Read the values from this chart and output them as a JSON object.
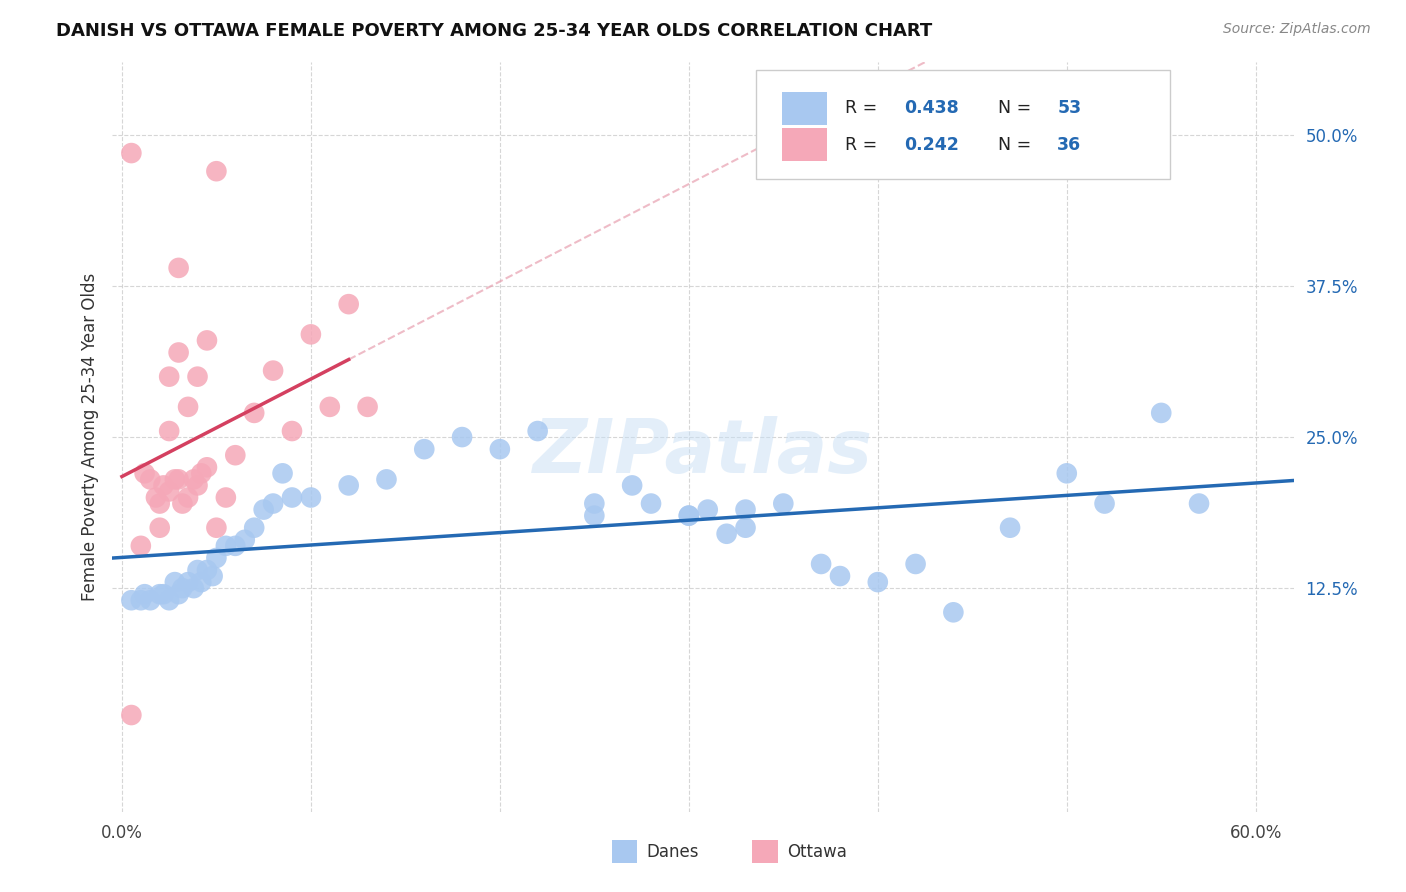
{
  "title": "DANISH VS OTTAWA FEMALE POVERTY AMONG 25-34 YEAR OLDS CORRELATION CHART",
  "source": "Source: ZipAtlas.com",
  "ylabel": "Female Poverty Among 25-34 Year Olds",
  "xlim": [
    -0.005,
    0.62
  ],
  "ylim": [
    -0.06,
    0.56
  ],
  "xticks": [
    0.0,
    0.1,
    0.2,
    0.3,
    0.4,
    0.5,
    0.6
  ],
  "xticklabels": [
    "0.0%",
    "",
    "",
    "",
    "",
    "",
    "60.0%"
  ],
  "yticks": [
    0.125,
    0.25,
    0.375,
    0.5
  ],
  "yticklabels": [
    "12.5%",
    "25.0%",
    "37.5%",
    "50.0%"
  ],
  "danes_color": "#a8c8f0",
  "ottawa_color": "#f5a8b8",
  "danes_line_color": "#2469b3",
  "ottawa_line_color": "#d44060",
  "ottawa_dash_color": "#e8a0b0",
  "r_val_color": "#2469b3",
  "background_color": "#ffffff",
  "grid_color": "#cccccc",
  "watermark": "ZIPatlas",
  "watermark_color": "#c8dff5",
  "danes_x": [
    0.005,
    0.01,
    0.012,
    0.015,
    0.02,
    0.022,
    0.025,
    0.028,
    0.03,
    0.032,
    0.035,
    0.038,
    0.04,
    0.042,
    0.045,
    0.048,
    0.05,
    0.055,
    0.06,
    0.065,
    0.07,
    0.075,
    0.08,
    0.085,
    0.09,
    0.1,
    0.12,
    0.14,
    0.16,
    0.18,
    0.2,
    0.22,
    0.25,
    0.27,
    0.28,
    0.3,
    0.31,
    0.32,
    0.33,
    0.35,
    0.37,
    0.38,
    0.4,
    0.42,
    0.44,
    0.47,
    0.5,
    0.52,
    0.55,
    0.57,
    0.33,
    0.25,
    0.3
  ],
  "danes_y": [
    0.115,
    0.115,
    0.12,
    0.115,
    0.12,
    0.12,
    0.115,
    0.13,
    0.12,
    0.125,
    0.13,
    0.125,
    0.14,
    0.13,
    0.14,
    0.135,
    0.15,
    0.16,
    0.16,
    0.165,
    0.175,
    0.19,
    0.195,
    0.22,
    0.2,
    0.2,
    0.21,
    0.215,
    0.24,
    0.25,
    0.24,
    0.255,
    0.195,
    0.21,
    0.195,
    0.185,
    0.19,
    0.17,
    0.175,
    0.195,
    0.145,
    0.135,
    0.13,
    0.145,
    0.105,
    0.175,
    0.22,
    0.195,
    0.27,
    0.195,
    0.19,
    0.185,
    0.185
  ],
  "ottawa_x": [
    0.005,
    0.01,
    0.012,
    0.015,
    0.018,
    0.02,
    0.022,
    0.025,
    0.028,
    0.03,
    0.032,
    0.035,
    0.038,
    0.04,
    0.042,
    0.045,
    0.05,
    0.055,
    0.06,
    0.07,
    0.08,
    0.09,
    0.1,
    0.11,
    0.12,
    0.13,
    0.02,
    0.025,
    0.03,
    0.025,
    0.03,
    0.035,
    0.04,
    0.045,
    0.05,
    0.005
  ],
  "ottawa_y": [
    0.02,
    0.16,
    0.22,
    0.215,
    0.2,
    0.195,
    0.21,
    0.205,
    0.215,
    0.215,
    0.195,
    0.2,
    0.215,
    0.21,
    0.22,
    0.225,
    0.175,
    0.2,
    0.235,
    0.27,
    0.305,
    0.255,
    0.335,
    0.275,
    0.36,
    0.275,
    0.175,
    0.3,
    0.32,
    0.255,
    0.39,
    0.275,
    0.3,
    0.33,
    0.47,
    0.485
  ],
  "legend_label_danes": "Danes",
  "legend_label_ottawa": "Ottawa"
}
